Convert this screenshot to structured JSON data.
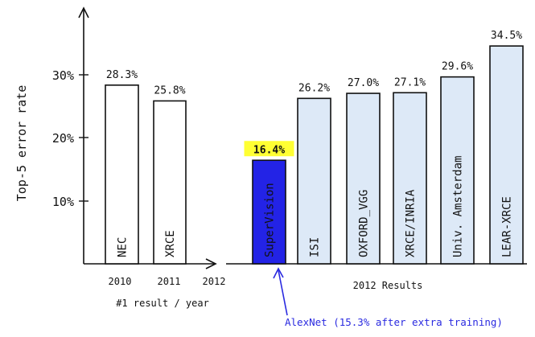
{
  "chart_data": {
    "type": "bar",
    "ylabel": "Top-5 error rate",
    "yticks": [
      "10%",
      "20%",
      "30%"
    ],
    "ytick_values": [
      10,
      20,
      30
    ],
    "groups": [
      {
        "name": "#1 result / year",
        "years": [
          "2010",
          "2011",
          "2012"
        ],
        "bars": [
          {
            "label": "NEC",
            "value": 28.3,
            "value_text": "28.3%"
          },
          {
            "label": "XRCE",
            "value": 25.8,
            "value_text": "25.8%"
          }
        ]
      },
      {
        "name": "2012 Results",
        "bars": [
          {
            "label": "SuperVision",
            "value": 16.4,
            "value_text": "16.4%",
            "highlight": true
          },
          {
            "label": "ISI",
            "value": 26.2,
            "value_text": "26.2%"
          },
          {
            "label": "OXFORD_VGG",
            "value": 27.0,
            "value_text": "27.0%"
          },
          {
            "label": "XRCE/INRIA",
            "value": 27.1,
            "value_text": "27.1%"
          },
          {
            "label": "Univ. Amsterdam",
            "value": 29.6,
            "value_text": "29.6%"
          },
          {
            "label": "LEAR-XRCE",
            "value": 34.5,
            "value_text": "34.5%"
          }
        ]
      }
    ],
    "annotation": "AlexNet (15.3% after extra training)",
    "colors": {
      "white_bar": "#ffffff",
      "light_bar": "#dde9f7",
      "highlight_bar": "#2323e6",
      "highlight_label_bg": "#ffff33",
      "annotation": "#2a2ae0"
    }
  }
}
